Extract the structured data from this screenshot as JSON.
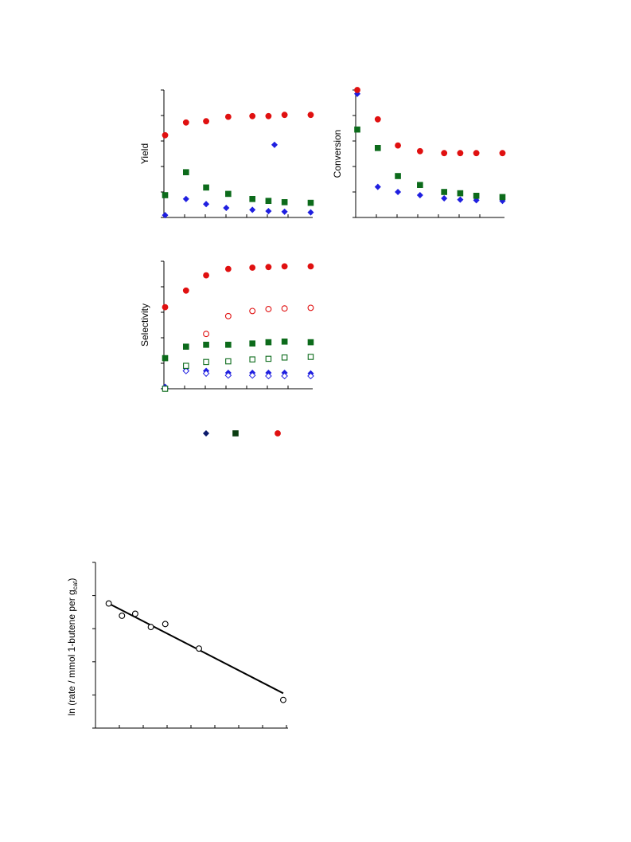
{
  "chart_data": [
    {
      "id": "yield",
      "type": "scatter",
      "ylabel": "Yield",
      "xlim": [
        0,
        37
      ],
      "ylim": [
        0,
        100
      ],
      "series": [
        {
          "color": "#1f1fe0",
          "marker": "diamond",
          "filled": true,
          "points": [
            [
              0.3,
              1.8
            ],
            [
              5.5,
              14.5
            ],
            [
              10.5,
              10.5
            ],
            [
              15.5,
              7.5
            ],
            [
              22,
              6
            ],
            [
              26,
              5
            ],
            [
              30,
              4.5
            ],
            [
              36.5,
              4
            ]
          ]
        },
        {
          "color": "#1f1fe0",
          "marker": "diamond",
          "filled": true,
          "points": [
            [
              27.5,
              57
            ]
          ]
        },
        {
          "color": "#0c6b1b",
          "marker": "square",
          "filled": true,
          "points": [
            [
              0.3,
              17.5
            ],
            [
              5.5,
              35.5
            ],
            [
              10.5,
              23.5
            ],
            [
              16,
              18.5
            ],
            [
              22,
              14.5
            ],
            [
              26,
              13
            ],
            [
              30,
              12
            ],
            [
              36.5,
              11.5
            ]
          ]
        },
        {
          "color": "#e01010",
          "marker": "circle",
          "filled": true,
          "points": [
            [
              0.3,
              64.5
            ],
            [
              5.5,
              74.5
            ],
            [
              10.5,
              75.5
            ],
            [
              16,
              79
            ],
            [
              22,
              79.5
            ],
            [
              26,
              79.5
            ],
            [
              30,
              80.5
            ],
            [
              36.5,
              80.5
            ]
          ]
        }
      ]
    },
    {
      "id": "conversion",
      "type": "scatter",
      "ylabel": "Conversion",
      "xlim": [
        0,
        37
      ],
      "ylim": [
        0,
        100
      ],
      "series": [
        {
          "color": "#1f1fe0",
          "marker": "diamond",
          "filled": true,
          "points": [
            [
              0.4,
              97
            ],
            [
              5.5,
              24
            ],
            [
              10.5,
              20
            ],
            [
              16,
              17.5
            ],
            [
              22,
              15
            ],
            [
              26,
              14
            ],
            [
              30,
              13.5
            ],
            [
              36.5,
              13
            ]
          ]
        },
        {
          "color": "#0c6b1b",
          "marker": "square",
          "filled": true,
          "points": [
            [
              0.4,
              69
            ],
            [
              5.5,
              54.5
            ],
            [
              10.5,
              32.5
            ],
            [
              16,
              25.5
            ],
            [
              22,
              20
            ],
            [
              26,
              19
            ],
            [
              30,
              17
            ],
            [
              36.5,
              16
            ]
          ]
        },
        {
          "color": "#e01010",
          "marker": "circle",
          "filled": true,
          "points": [
            [
              0.4,
              100
            ],
            [
              5.5,
              77
            ],
            [
              10.5,
              56.5
            ],
            [
              16,
              52
            ],
            [
              22,
              50.5
            ],
            [
              26,
              50.5
            ],
            [
              30,
              50.5
            ],
            [
              36.5,
              50.5
            ]
          ]
        }
      ]
    },
    {
      "id": "selectivity",
      "type": "scatter",
      "ylabel": "Selectivity",
      "xlim": [
        0,
        37
      ],
      "ylim": [
        0,
        100
      ],
      "series": [
        {
          "color": "#1f1fe0",
          "marker": "diamond",
          "filled": true,
          "points": [
            [
              0.3,
              1.5
            ],
            [
              5.5,
              16
            ],
            [
              10.5,
              14
            ],
            [
              16,
              12.5
            ],
            [
              22,
              12.5
            ],
            [
              26,
              12.5
            ],
            [
              30,
              12.5
            ],
            [
              36.5,
              12
            ]
          ]
        },
        {
          "color": "#1f1fe0",
          "marker": "diamond",
          "filled": false,
          "points": [
            [
              0.3,
              0.5
            ],
            [
              5.5,
              14
            ],
            [
              10.5,
              12
            ],
            [
              16,
              10.5
            ],
            [
              22,
              10.5
            ],
            [
              26,
              10
            ],
            [
              30,
              10
            ],
            [
              36.5,
              10
            ]
          ]
        },
        {
          "color": "#0c6b1b",
          "marker": "square",
          "filled": true,
          "points": [
            [
              0.3,
              24
            ],
            [
              5.5,
              33
            ],
            [
              10.5,
              34.5
            ],
            [
              16,
              34.5
            ],
            [
              22,
              35.5
            ],
            [
              26,
              36.5
            ],
            [
              30,
              37
            ],
            [
              36.5,
              36.5
            ]
          ]
        },
        {
          "color": "#0c6b1b",
          "marker": "square",
          "filled": false,
          "points": [
            [
              0.3,
              0
            ],
            [
              5.5,
              18
            ],
            [
              10.5,
              21
            ],
            [
              16,
              21.5
            ],
            [
              22,
              23
            ],
            [
              26,
              23.5
            ],
            [
              30,
              24.5
            ],
            [
              36.5,
              25
            ]
          ]
        },
        {
          "color": "#e01010",
          "marker": "circle",
          "filled": true,
          "points": [
            [
              0.3,
              64
            ],
            [
              5.5,
              77
            ],
            [
              10.5,
              89
            ],
            [
              16,
              94
            ],
            [
              22,
              95
            ],
            [
              26,
              95.5
            ],
            [
              30,
              96
            ],
            [
              36.5,
              96
            ]
          ]
        },
        {
          "color": "#e01010",
          "marker": "circle",
          "filled": false,
          "points": [
            [
              10.5,
              43
            ],
            [
              16,
              57
            ],
            [
              22,
              61
            ],
            [
              26,
              62.5
            ],
            [
              30,
              63
            ],
            [
              36.5,
              63.5
            ]
          ]
        }
      ]
    },
    {
      "id": "arrhenius",
      "type": "scatter",
      "ylabel": "ln (rate / mmol 1-butene per g",
      "ylabel_sub": "cat",
      "ylabel_close": ")",
      "xlim": [
        0,
        8
      ],
      "ylim": [
        0,
        5
      ],
      "series": [
        {
          "color": "#000000",
          "marker": "circle",
          "filled": false,
          "points": [
            [
              0.55,
              3.76
            ],
            [
              1.1,
              3.39
            ],
            [
              1.65,
              3.45
            ],
            [
              2.3,
              3.05
            ],
            [
              2.9,
              3.14
            ],
            [
              4.3,
              2.4
            ],
            [
              7.8,
              0.85
            ]
          ]
        }
      ],
      "fit_line": [
        [
          0.55,
          3.76
        ],
        [
          7.8,
          1.05
        ]
      ]
    }
  ],
  "legend": {
    "items": [
      {
        "marker": "diamond",
        "color": "#0b1a6b"
      },
      {
        "marker": "square",
        "color": "#0b3d12"
      },
      {
        "marker": "circle",
        "color": "#e01010"
      }
    ]
  }
}
